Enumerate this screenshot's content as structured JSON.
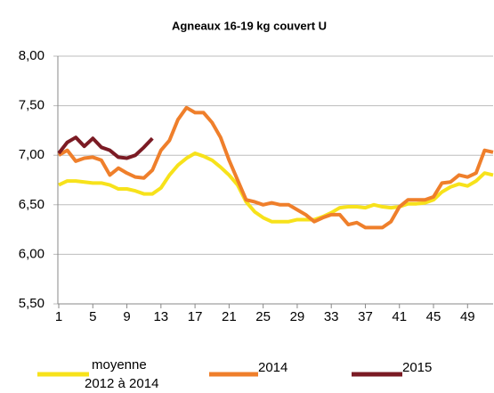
{
  "chart_data": {
    "type": "line",
    "title": "Agneaux 16-19 kg couvert U",
    "x": [
      1,
      2,
      3,
      4,
      5,
      6,
      7,
      8,
      9,
      10,
      11,
      12,
      13,
      14,
      15,
      16,
      17,
      18,
      19,
      20,
      21,
      22,
      23,
      24,
      25,
      26,
      27,
      28,
      29,
      30,
      31,
      32,
      33,
      34,
      35,
      36,
      37,
      38,
      39,
      40,
      41,
      42,
      43,
      44,
      45,
      46,
      47,
      48,
      49,
      50,
      51,
      52
    ],
    "xlim": [
      1,
      52
    ],
    "xticks": [
      1,
      5,
      9,
      13,
      17,
      21,
      25,
      29,
      33,
      37,
      41,
      45,
      49
    ],
    "ylim": [
      5.5,
      8.0
    ],
    "yticks": [
      {
        "value": 5.5,
        "label": "5,50"
      },
      {
        "value": 6.0,
        "label": "6,00"
      },
      {
        "value": 6.5,
        "label": "6,50"
      },
      {
        "value": 7.0,
        "label": "7,00"
      },
      {
        "value": 7.5,
        "label": "7,50"
      },
      {
        "value": 8.0,
        "label": "8,00"
      }
    ],
    "grid": true,
    "series": [
      {
        "name": "moyenne\n2012 à 2014",
        "color": "#f7e21b",
        "values": [
          6.7,
          6.74,
          6.74,
          6.73,
          6.72,
          6.72,
          6.7,
          6.66,
          6.66,
          6.64,
          6.61,
          6.61,
          6.67,
          6.8,
          6.9,
          6.97,
          7.02,
          6.99,
          6.95,
          6.88,
          6.8,
          6.7,
          6.53,
          6.43,
          6.37,
          6.33,
          6.33,
          6.33,
          6.35,
          6.35,
          6.35,
          6.38,
          6.42,
          6.47,
          6.48,
          6.48,
          6.47,
          6.5,
          6.48,
          6.47,
          6.48,
          6.51,
          6.51,
          6.52,
          6.55,
          6.63,
          6.68,
          6.71,
          6.69,
          6.74,
          6.82,
          6.8
        ]
      },
      {
        "name": "2014",
        "color": "#ef7f2b",
        "values": [
          7.0,
          7.05,
          6.94,
          6.97,
          6.98,
          6.95,
          6.8,
          6.87,
          6.82,
          6.78,
          6.77,
          6.85,
          7.05,
          7.15,
          7.36,
          7.48,
          7.43,
          7.43,
          7.33,
          7.18,
          6.95,
          6.75,
          6.55,
          6.53,
          6.5,
          6.52,
          6.5,
          6.5,
          6.45,
          6.4,
          6.33,
          6.37,
          6.4,
          6.4,
          6.3,
          6.32,
          6.27,
          6.27,
          6.27,
          6.33,
          6.48,
          6.55,
          6.55,
          6.55,
          6.58,
          6.72,
          6.73,
          6.8,
          6.78,
          6.82,
          7.05,
          7.03
        ]
      },
      {
        "name": "2015",
        "color": "#7b1b24",
        "values": [
          7.02,
          7.13,
          7.18,
          7.09,
          7.17,
          7.08,
          7.05,
          6.98,
          6.97,
          7.0,
          7.08,
          7.17,
          null,
          null,
          null,
          null,
          null,
          null,
          null,
          null,
          null,
          null,
          null,
          null,
          null,
          null,
          null,
          null,
          null,
          null,
          null,
          null,
          null,
          null,
          null,
          null,
          null,
          null,
          null,
          null,
          null,
          null,
          null,
          null,
          null,
          null,
          null,
          null,
          null,
          null,
          null,
          null
        ]
      }
    ]
  }
}
